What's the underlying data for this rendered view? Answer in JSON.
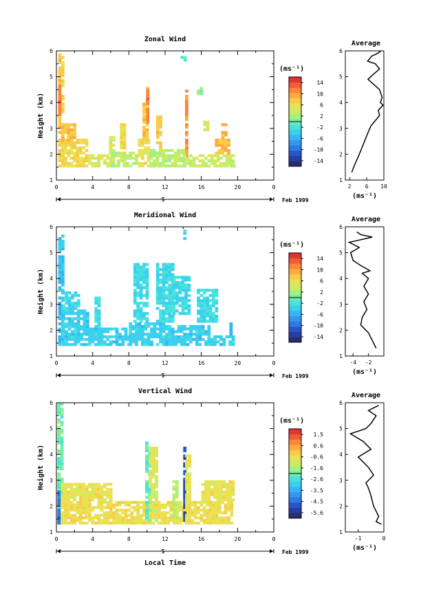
{
  "colors": {
    "scale": [
      "#2b2d72",
      "#2a3f9c",
      "#2457c8",
      "#2f78e0",
      "#3496f0",
      "#38b4f4",
      "#3cd0ee",
      "#48e3dc",
      "#73eea8",
      "#a3f17e",
      "#ccec64",
      "#e9e255",
      "#f8cc48",
      "#fcab3e",
      "#fb853a",
      "#f25a38",
      "#dd3630"
    ]
  },
  "footer": {
    "xlabel": "Local Time"
  },
  "chart_data": [
    {
      "type": "heatmap",
      "id": "zonal",
      "title": "Zonal Wind",
      "ylabel": "Height (km)",
      "xlabel": "",
      "xlim": [
        0,
        24
      ],
      "ylim": [
        1,
        6
      ],
      "xticks": [
        "0",
        "4",
        "8",
        "12",
        "16",
        "20",
        "0"
      ],
      "xtick_values": [
        0,
        4,
        8,
        12,
        16,
        20,
        24
      ],
      "yticks": [
        "1",
        "2",
        "3",
        "4",
        "5",
        "6"
      ],
      "date_marker": "5",
      "date_label": "Feb 1999",
      "colorbar": {
        "unit": "(ms⁻¹)",
        "ticks": [
          "14",
          "10",
          "6",
          "2",
          "-2",
          "-6",
          "-10",
          "-14"
        ],
        "range": [
          -16,
          16
        ]
      },
      "regions": [
        {
          "x": [
            0.2,
            0.6
          ],
          "y": [
            1.5,
            5.85
          ],
          "value": 8
        },
        {
          "x": [
            0.2,
            0.5
          ],
          "y": [
            3.5,
            4.6
          ],
          "value": 12
        },
        {
          "x": [
            0.5,
            3.5
          ],
          "y": [
            1.5,
            2.6
          ],
          "value": 7
        },
        {
          "x": [
            0.5,
            2.0
          ],
          "y": [
            2.5,
            3.2
          ],
          "value": 9
        },
        {
          "x": [
            3.5,
            6.0
          ],
          "y": [
            1.5,
            2.0
          ],
          "value": 5
        },
        {
          "x": [
            5.8,
            6.2
          ],
          "y": [
            1.5,
            2.7
          ],
          "value": 4
        },
        {
          "x": [
            6.0,
            9.0
          ],
          "y": [
            1.5,
            2.1
          ],
          "value": 3
        },
        {
          "x": [
            7.0,
            7.4
          ],
          "y": [
            2.0,
            3.2
          ],
          "value": 7
        },
        {
          "x": [
            9.0,
            10.3
          ],
          "y": [
            1.5,
            2.6
          ],
          "value": 6
        },
        {
          "x": [
            9.5,
            10.0
          ],
          "y": [
            2.5,
            4.1
          ],
          "value": 8
        },
        {
          "x": [
            9.9,
            10.2
          ],
          "y": [
            3.2,
            4.5
          ],
          "value": 12
        },
        {
          "x": [
            10.3,
            14.0
          ],
          "y": [
            1.5,
            2.2
          ],
          "value": 3
        },
        {
          "x": [
            11.0,
            11.4
          ],
          "y": [
            2.2,
            3.5
          ],
          "value": 8
        },
        {
          "x": [
            13.7,
            14.3
          ],
          "y": [
            5.6,
            5.7
          ],
          "value": -2
        },
        {
          "x": [
            14.2,
            14.5
          ],
          "y": [
            1.6,
            4.6
          ],
          "value": 11
        },
        {
          "x": [
            14.0,
            19.5
          ],
          "y": [
            1.5,
            2.0
          ],
          "value": 4
        },
        {
          "x": [
            15.5,
            16.0
          ],
          "y": [
            4.3,
            4.5
          ],
          "value": 1
        },
        {
          "x": [
            16.2,
            16.6
          ],
          "y": [
            2.9,
            3.3
          ],
          "value": 5
        },
        {
          "x": [
            17.5,
            19.0
          ],
          "y": [
            2.0,
            2.6
          ],
          "value": 9
        },
        {
          "x": [
            18.2,
            18.6
          ],
          "y": [
            2.6,
            3.2
          ],
          "value": 10
        },
        {
          "x": [
            18.8,
            19.6
          ],
          "y": [
            1.5,
            1.8
          ],
          "value": 3
        }
      ],
      "profile": {
        "title": "Average",
        "xlabel": "(ms⁻¹)",
        "xlim": [
          1,
          10
        ],
        "xticks": [
          "2",
          "6",
          "10"
        ],
        "xtick_values": [
          2,
          6,
          10
        ],
        "yticks": [
          "1",
          "2",
          "3",
          "4",
          "5",
          "6"
        ],
        "points": [
          [
            2.5,
            1.3
          ],
          [
            3.2,
            1.6
          ],
          [
            4.0,
            1.9
          ],
          [
            5.0,
            2.3
          ],
          [
            6.2,
            2.8
          ],
          [
            7.0,
            3.1
          ],
          [
            8.0,
            3.3
          ],
          [
            9.0,
            3.5
          ],
          [
            8.7,
            3.7
          ],
          [
            9.8,
            3.9
          ],
          [
            9.2,
            4.0
          ],
          [
            9.6,
            4.2
          ],
          [
            9.0,
            4.5
          ],
          [
            6.3,
            4.9
          ],
          [
            7.6,
            5.1
          ],
          [
            9.0,
            5.3
          ],
          [
            8.0,
            5.5
          ],
          [
            6.2,
            5.6
          ],
          [
            7.2,
            5.8
          ],
          [
            8.5,
            5.9
          ],
          [
            9.3,
            6.0
          ]
        ]
      }
    },
    {
      "type": "heatmap",
      "id": "meridional",
      "title": "Meridional Wind",
      "ylabel": "Height (km)",
      "xlabel": "",
      "xlim": [
        0,
        24
      ],
      "ylim": [
        1,
        6
      ],
      "xticks": [
        "0",
        "4",
        "8",
        "12",
        "16",
        "20",
        "0"
      ],
      "xtick_values": [
        0,
        4,
        8,
        12,
        16,
        20,
        24
      ],
      "yticks": [
        "1",
        "2",
        "3",
        "4",
        "5",
        "6"
      ],
      "date_marker": "5",
      "date_label": "Feb 1999",
      "colorbar": {
        "unit": "(ms⁻¹)",
        "ticks": [
          "14",
          "10",
          "6",
          "2",
          "-2",
          "-6",
          "-10",
          "-14"
        ],
        "range": [
          -16,
          16
        ]
      },
      "regions": [
        {
          "x": [
            0.2,
            0.6
          ],
          "y": [
            1.4,
            5.6
          ],
          "value": -5
        },
        {
          "x": [
            0.6,
            3.5
          ],
          "y": [
            1.4,
            2.8
          ],
          "value": -4
        },
        {
          "x": [
            0.6,
            2.5
          ],
          "y": [
            2.8,
            3.5
          ],
          "value": -3
        },
        {
          "x": [
            3.5,
            8.0
          ],
          "y": [
            1.4,
            2.1
          ],
          "value": -4
        },
        {
          "x": [
            4.2,
            4.6
          ],
          "y": [
            2.1,
            3.3
          ],
          "value": -3
        },
        {
          "x": [
            8.0,
            12.0
          ],
          "y": [
            1.4,
            2.3
          ],
          "value": -4
        },
        {
          "x": [
            8.5,
            10.0
          ],
          "y": [
            2.3,
            4.5
          ],
          "value": -3
        },
        {
          "x": [
            11.0,
            12.8
          ],
          "y": [
            2.3,
            4.5
          ],
          "value": -3
        },
        {
          "x": [
            12.0,
            17.0
          ],
          "y": [
            1.4,
            2.2
          ],
          "value": -4
        },
        {
          "x": [
            12.8,
            14.5
          ],
          "y": [
            2.6,
            4.1
          ],
          "value": -3
        },
        {
          "x": [
            15.5,
            17.5
          ],
          "y": [
            2.3,
            3.6
          ],
          "value": -3
        },
        {
          "x": [
            17.0,
            19.5
          ],
          "y": [
            1.4,
            1.8
          ],
          "value": -4
        },
        {
          "x": [
            19.1,
            19.4
          ],
          "y": [
            1.8,
            2.3
          ],
          "value": -6
        },
        {
          "x": [
            14.0,
            14.2
          ],
          "y": [
            5.5,
            5.8
          ],
          "value": -3
        }
      ],
      "profile": {
        "title": "Average",
        "xlabel": "(ms⁻¹)",
        "xlim": [
          -5,
          0
        ],
        "xticks": [
          "-4",
          "-2"
        ],
        "xtick_values": [
          -4,
          -2
        ],
        "yticks": [
          "1",
          "2",
          "3",
          "4",
          "5",
          "6"
        ],
        "points": [
          [
            -1.0,
            1.3
          ],
          [
            -1.5,
            1.6
          ],
          [
            -2.0,
            1.9
          ],
          [
            -3.0,
            2.2
          ],
          [
            -2.8,
            2.5
          ],
          [
            -2.2,
            2.8
          ],
          [
            -2.6,
            3.1
          ],
          [
            -2.0,
            3.4
          ],
          [
            -2.6,
            3.7
          ],
          [
            -2.0,
            4.0
          ],
          [
            -2.8,
            4.2
          ],
          [
            -1.8,
            4.3
          ],
          [
            -3.0,
            4.5
          ],
          [
            -4.0,
            4.7
          ],
          [
            -4.3,
            5.0
          ],
          [
            -3.2,
            5.2
          ],
          [
            -4.5,
            5.4
          ],
          [
            -1.5,
            5.6
          ],
          [
            -3.0,
            5.7
          ],
          [
            -3.5,
            5.8
          ]
        ]
      }
    },
    {
      "type": "heatmap",
      "id": "vertical",
      "title": "Vertical Wind",
      "ylabel": "Height (km)",
      "xlabel": "",
      "xlim": [
        0,
        24
      ],
      "ylim": [
        1,
        6
      ],
      "xticks": [
        "0",
        "4",
        "8",
        "12",
        "16",
        "20",
        "0"
      ],
      "xtick_values": [
        0,
        4,
        8,
        12,
        16,
        20,
        24
      ],
      "yticks": [
        "1",
        "2",
        "3",
        "4",
        "5",
        "6"
      ],
      "date_marker": "5",
      "date_label": "Feb 1999",
      "colorbar": {
        "unit": "(ms⁻¹)",
        "ticks": [
          "1.5",
          "0.6",
          "-0.6",
          "-1.6",
          "-2.6",
          "-3.5",
          "-4.5",
          "-5.6"
        ],
        "range": [
          -6.0,
          2.0
        ]
      },
      "regions": [
        {
          "x": [
            0.1,
            0.5
          ],
          "y": [
            1.3,
            5.9
          ],
          "value": -2.0
        },
        {
          "x": [
            0.1,
            0.4
          ],
          "y": [
            1.3,
            2.6
          ],
          "value": -4.5
        },
        {
          "x": [
            0.5,
            19.5
          ],
          "y": [
            1.3,
            2.2
          ],
          "value": -0.4
        },
        {
          "x": [
            0.5,
            6.0
          ],
          "y": [
            2.2,
            2.9
          ],
          "value": -0.5
        },
        {
          "x": [
            9.8,
            10.2
          ],
          "y": [
            1.4,
            4.5
          ],
          "value": -2.2
        },
        {
          "x": [
            10.2,
            11.0
          ],
          "y": [
            1.4,
            4.3
          ],
          "value": -0.7
        },
        {
          "x": [
            14.0,
            14.2
          ],
          "y": [
            1.4,
            4.3
          ],
          "value": -5.3
        },
        {
          "x": [
            14.2,
            14.7
          ],
          "y": [
            1.4,
            4.0
          ],
          "value": -0.5
        },
        {
          "x": [
            16.0,
            19.5
          ],
          "y": [
            2.2,
            3.0
          ],
          "value": -0.5
        },
        {
          "x": [
            12.8,
            13.2
          ],
          "y": [
            1.5,
            3.0
          ],
          "value": -1.2
        }
      ],
      "profile": {
        "title": "Average",
        "xlabel": "(ms⁻¹)",
        "xlim": [
          -1.5,
          0
        ],
        "xticks": [
          "-1",
          "0"
        ],
        "xtick_values": [
          -1,
          0
        ],
        "yticks": [
          "1",
          "2",
          "3",
          "4",
          "5",
          "6"
        ],
        "points": [
          [
            -0.1,
            1.3
          ],
          [
            -0.3,
            1.4
          ],
          [
            -0.2,
            1.6
          ],
          [
            -0.4,
            2.0
          ],
          [
            -0.5,
            2.4
          ],
          [
            -0.6,
            2.7
          ],
          [
            -0.7,
            2.9
          ],
          [
            -0.4,
            3.2
          ],
          [
            -0.6,
            3.5
          ],
          [
            -1.0,
            3.9
          ],
          [
            -0.5,
            4.2
          ],
          [
            -0.8,
            4.5
          ],
          [
            -1.3,
            4.8
          ],
          [
            -0.7,
            5.0
          ],
          [
            -0.5,
            5.2
          ],
          [
            -0.3,
            5.5
          ],
          [
            -0.6,
            5.7
          ],
          [
            -0.2,
            5.9
          ]
        ]
      }
    }
  ]
}
